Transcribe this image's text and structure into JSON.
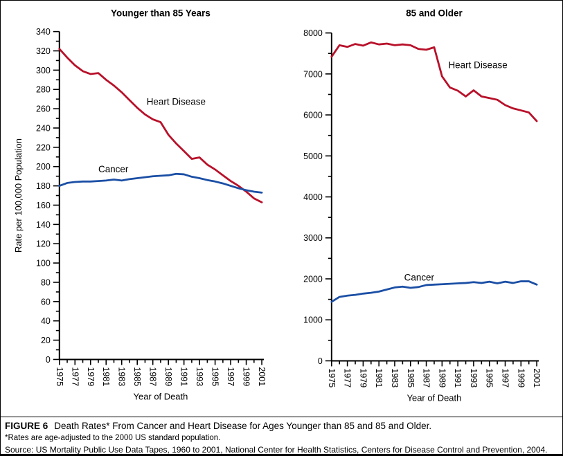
{
  "colors": {
    "heart_disease": "#B8112A",
    "cancer": "#1B4FA5",
    "axis": "#000000",
    "background": "#FFFFFF"
  },
  "caption": {
    "figure_label": "FIGURE 6",
    "title": "Death Rates* From Cancer and Heart Disease for Ages Younger than 85 and 85 and Older.",
    "footnote": "*Rates are age-adjusted to the 2000 US standard population.",
    "source": "Source: US Mortality Public Use Data Tapes, 1960 to 2001, National Center for Health Statistics, Centers for Disease Control and Prevention, 2004."
  },
  "chart_data": [
    {
      "type": "line",
      "title": "Younger than 85 Years",
      "xlabel": "Year of Death",
      "ylabel": "Rate per 100,000 Population",
      "ylim": [
        0,
        340
      ],
      "y_major_step": 20,
      "y_minor_step": 10,
      "x_start": 1975,
      "x_end": 2001,
      "x_tick_labels": [
        1975,
        1977,
        1979,
        1981,
        1983,
        1985,
        1987,
        1989,
        1991,
        1993,
        1995,
        1997,
        1999,
        2001
      ],
      "grid": false,
      "legend_position": "inline-annotations",
      "series": [
        {
          "name": "Heart Disease",
          "color": "heart_disease",
          "values": [
            322,
            313,
            305,
            299,
            296,
            297,
            290,
            284,
            277,
            269,
            261,
            254,
            249,
            246,
            233,
            224,
            216,
            208,
            209.5,
            202,
            197,
            191,
            185,
            180,
            174,
            167,
            163
          ]
        },
        {
          "name": "Cancer",
          "color": "cancer",
          "values": [
            180,
            183,
            184,
            184.5,
            184.5,
            185,
            185.5,
            186.5,
            185.5,
            187,
            188,
            189,
            190,
            190.5,
            191,
            192.5,
            192,
            189.5,
            188,
            186,
            184.5,
            182.5,
            180,
            177.5,
            175.5,
            174,
            173
          ]
        }
      ],
      "annotations": [
        {
          "text": "Heart Disease",
          "x": 1986.2,
          "y": 264
        },
        {
          "text": "Cancer",
          "x": 1980.0,
          "y": 194
        }
      ]
    },
    {
      "type": "line",
      "title": "85 and Older",
      "xlabel": "Year of Death",
      "ylabel": "",
      "ylim": [
        0,
        8000
      ],
      "y_major_step": 1000,
      "y_minor_step": 500,
      "x_start": 1975,
      "x_end": 2001,
      "x_tick_labels": [
        1975,
        1977,
        1979,
        1981,
        1983,
        1985,
        1987,
        1989,
        1991,
        1993,
        1995,
        1997,
        1999,
        2001
      ],
      "grid": false,
      "legend_position": "inline-annotations",
      "series": [
        {
          "name": "Heart Disease",
          "color": "heart_disease",
          "values": [
            7420,
            7700,
            7660,
            7730,
            7690,
            7770,
            7720,
            7740,
            7700,
            7720,
            7700,
            7610,
            7590,
            7650,
            6940,
            6670,
            6590,
            6450,
            6600,
            6450,
            6410,
            6370,
            6240,
            6160,
            6110,
            6060,
            5850
          ]
        },
        {
          "name": "Cancer",
          "color": "cancer",
          "values": [
            1440,
            1560,
            1590,
            1610,
            1640,
            1660,
            1690,
            1740,
            1790,
            1810,
            1780,
            1800,
            1850,
            1860,
            1870,
            1880,
            1890,
            1900,
            1920,
            1900,
            1930,
            1890,
            1930,
            1900,
            1940,
            1940,
            1860
          ]
        }
      ],
      "annotations": [
        {
          "text": "Heart Disease",
          "x": 1989.8,
          "y": 7140
        },
        {
          "text": "Cancer",
          "x": 1984.2,
          "y": 1960
        }
      ]
    }
  ]
}
